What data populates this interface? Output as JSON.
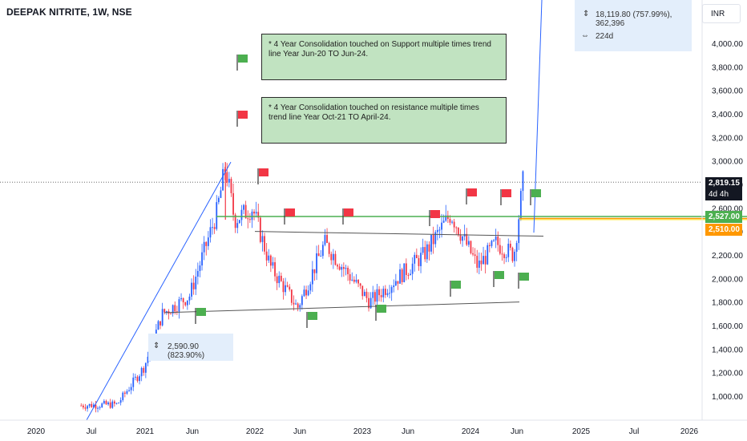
{
  "header": {
    "title": "DEEPAK NITRITE, 1W, NSE",
    "currency": "INR"
  },
  "notes": [
    "*  4 Year Consolidation touched on Support multiple times trend line Year Jun-20 TO Jun-24.",
    "*  4 Year Consolidation touched on resistance multiple times trend line Year Oct-21 TO April-24."
  ],
  "measure_top": {
    "change": "18,119.80 (757.99%), 362,396",
    "duration": "224d"
  },
  "measure_left": {
    "change": "2,590.90 (823.90%)"
  },
  "price_labels": {
    "last": "2,819.15",
    "countdown": "4d 4h",
    "green_line": "2,527.00",
    "orange_line": "2,510.00"
  },
  "colors": {
    "up": "#2962ff",
    "down": "#f23645",
    "support": "#4caf50",
    "level": "#ff9800",
    "measure": "#2962ff",
    "flag_red": "#f23645",
    "flag_green": "#4caf50"
  },
  "chart_data": {
    "type": "candlestick",
    "title": "DEEPAK NITRITE, 1W, NSE",
    "ylim": [
      900,
      4200
    ],
    "y_ticks": [
      "1,000.00",
      "1,200.00",
      "1,400.00",
      "1,600.00",
      "1,800.00",
      "2,000.00",
      "2,200.00",
      "2,400.00",
      "2,600.00",
      "2,800.00",
      "3,000.00",
      "3,200.00",
      "3,400.00",
      "3,600.00",
      "3,800.00",
      "4,000.00"
    ],
    "x_ticks": [
      "2020",
      "Jul",
      "2021",
      "Jun",
      "2022",
      "Jun",
      "2023",
      "Jun",
      "2024",
      "Jun",
      "2025",
      "Jul",
      "2026"
    ],
    "horizontal_levels": [
      2527,
      2510
    ],
    "last_price": 2819.15,
    "trend_lines": [
      {
        "name": "resistance",
        "from": [
          "2021-10",
          2400
        ],
        "to": [
          "2024-07",
          2360
        ]
      },
      {
        "name": "support",
        "from": [
          "2021-01",
          1710
        ],
        "to": [
          "2024-06",
          1800
        ]
      }
    ],
    "price_path": [
      [
        "2020-06",
        920
      ],
      [
        "2020-10",
        930
      ],
      [
        "2021-01",
        1250
      ],
      [
        "2021-03",
        1700
      ],
      [
        "2021-06",
        1850
      ],
      [
        "2021-09",
        2550
      ],
      [
        "2021-10",
        2950
      ],
      [
        "2021-11",
        2500
      ],
      [
        "2022-01",
        2600
      ],
      [
        "2022-03",
        2100
      ],
      [
        "2022-06",
        1750
      ],
      [
        "2022-09",
        2300
      ],
      [
        "2022-11",
        2100
      ],
      [
        "2023-02",
        1800
      ],
      [
        "2023-05",
        2000
      ],
      [
        "2023-08",
        2200
      ],
      [
        "2023-11",
        2550
      ],
      [
        "2024-02",
        2100
      ],
      [
        "2024-04",
        2300
      ],
      [
        "2024-06",
        2200
      ],
      [
        "2024-07",
        2819
      ]
    ]
  }
}
